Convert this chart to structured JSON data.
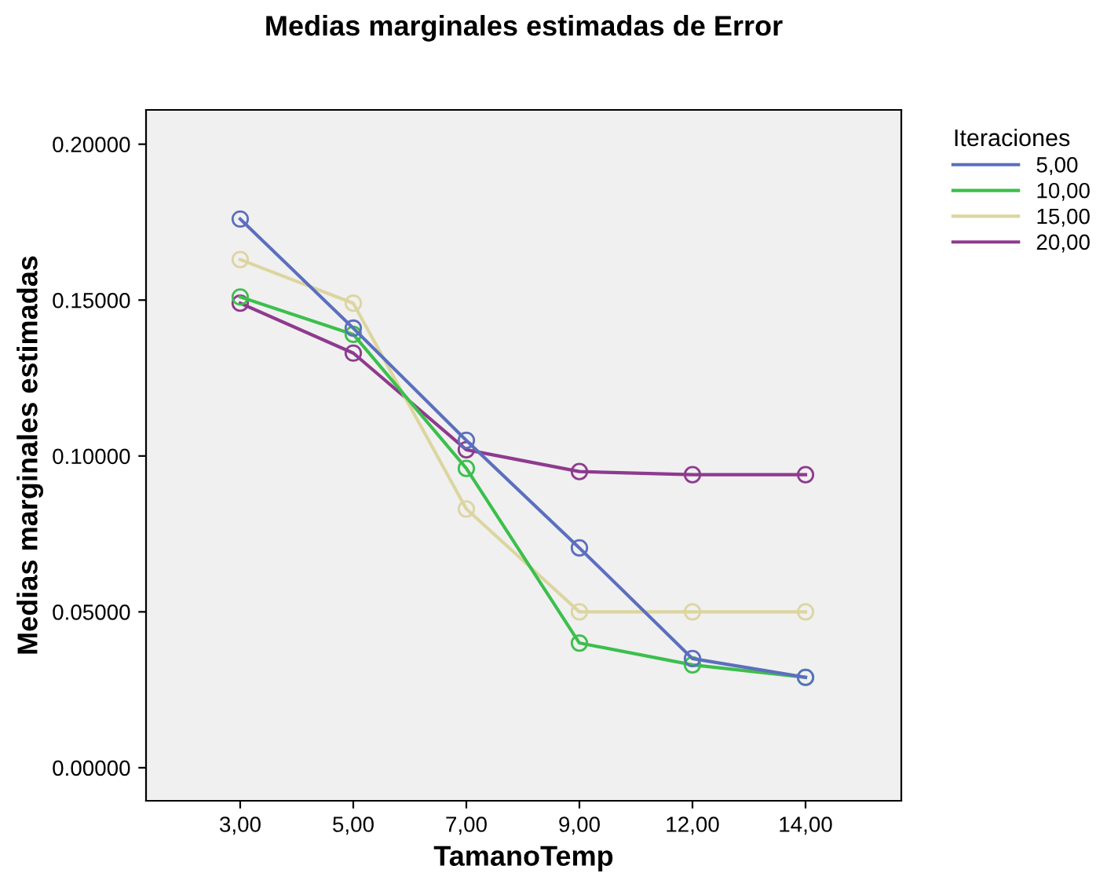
{
  "chart_data": {
    "type": "line",
    "title": "Medias marginales estimadas de Error",
    "xlabel": "TamanoTemp",
    "ylabel": "Medias marginales estimadas",
    "legend_title": "Iteraciones",
    "categories": [
      "3,00",
      "5,00",
      "7,00",
      "9,00",
      "12,00",
      "14,00"
    ],
    "series": [
      {
        "name": "5,00",
        "color": "#5b6fbf",
        "values": [
          0.176,
          0.141,
          0.105,
          0.0705,
          0.035,
          0.029
        ]
      },
      {
        "name": "10,00",
        "color": "#3cbf4c",
        "values": [
          0.151,
          0.139,
          0.096,
          0.04,
          0.033,
          0.029
        ]
      },
      {
        "name": "15,00",
        "color": "#dcd5a0",
        "values": [
          0.163,
          0.149,
          0.083,
          0.05,
          0.05,
          0.05
        ]
      },
      {
        "name": "20,00",
        "color": "#8e3a8e",
        "values": [
          0.149,
          0.133,
          0.102,
          0.095,
          0.094,
          0.094
        ]
      }
    ],
    "ylim": [
      -0.0106,
      0.211
    ],
    "yticks": [
      {
        "value": 0,
        "label": "0.00000"
      },
      {
        "value": 0.05,
        "label": "0.05000"
      },
      {
        "value": 0.1,
        "label": "0.10000"
      },
      {
        "value": 0.15,
        "label": "0.15000"
      },
      {
        "value": 0.2,
        "label": "0.20000"
      }
    ],
    "grid": false,
    "legend": "right",
    "marker": "circle",
    "line_style": "solid"
  }
}
